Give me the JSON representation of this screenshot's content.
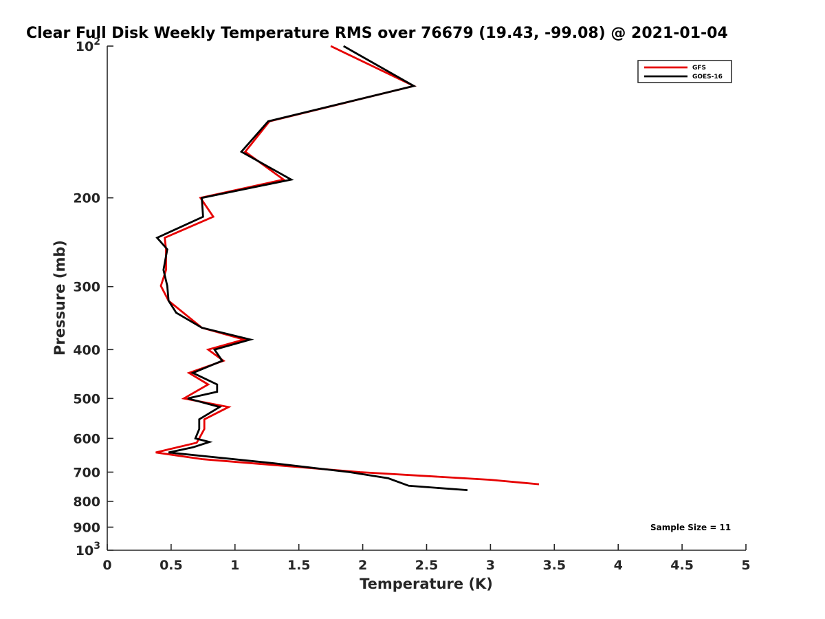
{
  "chart_data": {
    "type": "line",
    "title": "Clear Full Disk Weekly Temperature RMS over 76679 (19.43, -99.08) @ 2021-01-04",
    "xlabel": "Temperature (K)",
    "ylabel": "Pressure (mb)",
    "xlim": [
      0,
      5
    ],
    "ylim": [
      100,
      1000
    ],
    "y_scale": "log",
    "y_reversed": true,
    "grid": false,
    "legend_position": "top-right",
    "x_tick_labels": [
      "0",
      "0.5",
      "1",
      "1.5",
      "2",
      "2.5",
      "3",
      "3.5",
      "4",
      "4.5",
      "5"
    ],
    "x_ticks": [
      0,
      0.5,
      1,
      1.5,
      2,
      2.5,
      3,
      3.5,
      4,
      4.5,
      5
    ],
    "y_ticks": [
      {
        "value": 100,
        "label": "10",
        "sup": "2"
      },
      {
        "value": 200,
        "label": "200",
        "sup": ""
      },
      {
        "value": 300,
        "label": "300",
        "sup": ""
      },
      {
        "value": 400,
        "label": "400",
        "sup": ""
      },
      {
        "value": 500,
        "label": "500",
        "sup": ""
      },
      {
        "value": 600,
        "label": "600",
        "sup": ""
      },
      {
        "value": 700,
        "label": "700",
        "sup": ""
      },
      {
        "value": 800,
        "label": "800",
        "sup": ""
      },
      {
        "value": 900,
        "label": "900",
        "sup": ""
      },
      {
        "value": 1000,
        "label": "10",
        "sup": "3"
      }
    ],
    "annotation": "Sample Size = 11",
    "series": [
      {
        "name": "GFS",
        "color": "#e60000",
        "points": [
          [
            1.75,
            100
          ],
          [
            2.4,
            120
          ],
          [
            1.27,
            141
          ],
          [
            1.08,
            162
          ],
          [
            1.38,
            184
          ],
          [
            0.73,
            200
          ],
          [
            0.83,
            218
          ],
          [
            0.45,
            240
          ],
          [
            0.46,
            253
          ],
          [
            0.46,
            278
          ],
          [
            0.42,
            299
          ],
          [
            0.48,
            320
          ],
          [
            0.74,
            362
          ],
          [
            1.07,
            382
          ],
          [
            0.79,
            400
          ],
          [
            0.91,
            421
          ],
          [
            0.64,
            445
          ],
          [
            0.79,
            469
          ],
          [
            0.6,
            500
          ],
          [
            0.95,
            520
          ],
          [
            0.76,
            550
          ],
          [
            0.76,
            575
          ],
          [
            0.72,
            600
          ],
          [
            0.7,
            612
          ],
          [
            0.38,
            640
          ],
          [
            0.75,
            660
          ],
          [
            1.98,
            700
          ],
          [
            3.0,
            725
          ],
          [
            3.38,
            740
          ]
        ]
      },
      {
        "name": "GOES-16",
        "color": "#000000",
        "points": [
          [
            1.85,
            100
          ],
          [
            2.4,
            120
          ],
          [
            1.26,
            141
          ],
          [
            1.05,
            162
          ],
          [
            1.44,
            184
          ],
          [
            0.74,
            200
          ],
          [
            0.75,
            218
          ],
          [
            0.39,
            240
          ],
          [
            0.47,
            253
          ],
          [
            0.44,
            278
          ],
          [
            0.47,
            299
          ],
          [
            0.48,
            320
          ],
          [
            0.54,
            338
          ],
          [
            0.74,
            362
          ],
          [
            1.12,
            382
          ],
          [
            0.84,
            400
          ],
          [
            0.9,
            421
          ],
          [
            0.67,
            445
          ],
          [
            0.86,
            469
          ],
          [
            0.86,
            485
          ],
          [
            0.63,
            500
          ],
          [
            0.88,
            520
          ],
          [
            0.72,
            550
          ],
          [
            0.72,
            575
          ],
          [
            0.69,
            600
          ],
          [
            0.8,
            610
          ],
          [
            0.67,
            625
          ],
          [
            0.48,
            640
          ],
          [
            1.3,
            672
          ],
          [
            1.9,
            700
          ],
          [
            2.2,
            720
          ],
          [
            2.36,
            745
          ],
          [
            2.82,
            760
          ]
        ]
      }
    ]
  }
}
